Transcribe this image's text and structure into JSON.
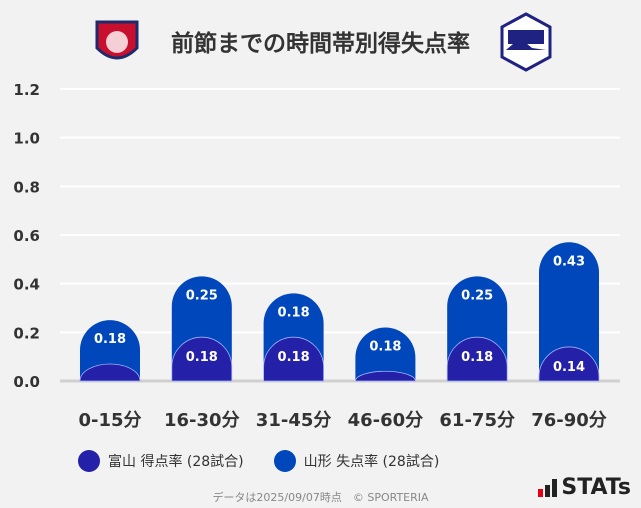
{
  "title": "前節までの時間帯別得失点率",
  "logos": {
    "left": "Kataller Toyama",
    "right": "Montedio YAMAGATA"
  },
  "chart_data": {
    "type": "bar",
    "stacked": true,
    "categories": [
      "0-15分",
      "16-30分",
      "31-45分",
      "46-60分",
      "61-75分",
      "76-90分"
    ],
    "series": [
      {
        "name": "富山 得点率 (28試合)",
        "color": "#2420a8",
        "values": [
          0.07,
          0.18,
          0.18,
          0.04,
          0.18,
          0.14
        ],
        "labels": [
          "",
          "0.18",
          "0.18",
          "",
          "0.18",
          "0.14"
        ]
      },
      {
        "name": "山形 失点率 (28試合)",
        "color": "#0047bb",
        "values": [
          0.18,
          0.25,
          0.18,
          0.18,
          0.25,
          0.43
        ],
        "labels": [
          "0.18",
          "0.25",
          "0.18",
          "0.18",
          "0.25",
          "0.43"
        ]
      }
    ],
    "yticks": [
      "0.0",
      "0.2",
      "0.4",
      "0.6",
      "0.8",
      "1.0",
      "1.2"
    ],
    "ylim": [
      0,
      1.2
    ],
    "grid": true,
    "legend": "bottom"
  },
  "footer": "データは2025/09/07時点　© SPORTERIA",
  "brand": "STATs"
}
